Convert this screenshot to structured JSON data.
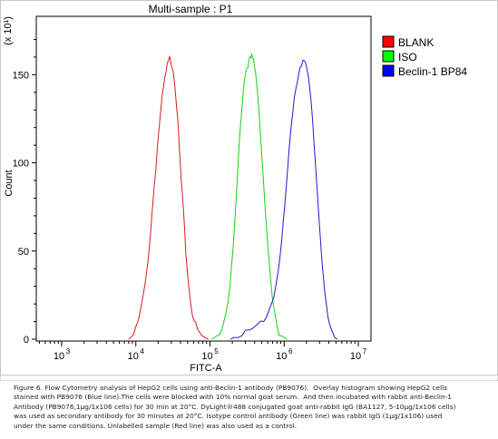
{
  "chart_data": {
    "type": "line",
    "title": "Multi-sample : P1",
    "xlabel": "FITC-A",
    "ylabel": "Count",
    "y_multiplier": "(x 10¹)",
    "x_scale": "log",
    "xlim": [
      1000,
      10000000
    ],
    "ylim": [
      0,
      180
    ],
    "x_ticks": [
      1000,
      10000,
      100000,
      1000000,
      10000000
    ],
    "x_tick_labels": [
      "10",
      "10",
      "10",
      "10",
      "10"
    ],
    "x_tick_exponents": [
      "3",
      "4",
      "5",
      "6",
      "7"
    ],
    "y_ticks": [
      0,
      50,
      100,
      150
    ],
    "y_tick_labels": [
      "0",
      "50",
      "100",
      "150"
    ],
    "grid": false,
    "legend_position": "top-right",
    "series": [
      {
        "name": "BLANK",
        "color": "#d11f1f",
        "swatch": "#ff0000",
        "points": [
          [
            8000,
            0
          ],
          [
            8600,
            1
          ],
          [
            9400,
            3
          ],
          [
            10000,
            6
          ],
          [
            10800,
            10
          ],
          [
            11600,
            16
          ],
          [
            12600,
            24
          ],
          [
            13600,
            34
          ],
          [
            14600,
            46
          ],
          [
            15600,
            58
          ],
          [
            16600,
            72
          ],
          [
            17600,
            86
          ],
          [
            18600,
            98
          ],
          [
            19600,
            110
          ],
          [
            20600,
            120
          ],
          [
            21600,
            128
          ],
          [
            22600,
            136
          ],
          [
            23600,
            142
          ],
          [
            24600,
            147
          ],
          [
            25600,
            151
          ],
          [
            26600,
            155
          ],
          [
            27600,
            157
          ],
          [
            28600,
            159
          ],
          [
            29600,
            158
          ],
          [
            30600,
            156
          ],
          [
            31600,
            154
          ],
          [
            32600,
            150
          ],
          [
            33600,
            145
          ],
          [
            34600,
            139
          ],
          [
            35600,
            132
          ],
          [
            36600,
            124
          ],
          [
            37600,
            116
          ],
          [
            38600,
            108
          ],
          [
            39600,
            100
          ],
          [
            41000,
            90
          ],
          [
            42600,
            80
          ],
          [
            44000,
            70
          ],
          [
            45600,
            60
          ],
          [
            47200,
            50
          ],
          [
            49000,
            41
          ],
          [
            51000,
            33
          ],
          [
            53000,
            26
          ],
          [
            55500,
            20
          ],
          [
            58000,
            15
          ],
          [
            61000,
            11
          ],
          [
            64000,
            8
          ],
          [
            68000,
            5
          ],
          [
            72000,
            3
          ],
          [
            78000,
            2
          ],
          [
            85000,
            1
          ],
          [
            95000,
            0
          ]
        ]
      },
      {
        "name": "ISO",
        "color": "#16d116",
        "swatch": "#00ff00",
        "points": [
          [
            105000,
            0
          ],
          [
            115000,
            1
          ],
          [
            125000,
            2
          ],
          [
            135000,
            4
          ],
          [
            145000,
            7
          ],
          [
            155000,
            11
          ],
          [
            165000,
            16
          ],
          [
            175000,
            22
          ],
          [
            185000,
            30
          ],
          [
            195000,
            40
          ],
          [
            205000,
            52
          ],
          [
            215000,
            64
          ],
          [
            225000,
            78
          ],
          [
            235000,
            92
          ],
          [
            245000,
            106
          ],
          [
            255000,
            118
          ],
          [
            265000,
            128
          ],
          [
            275000,
            137
          ],
          [
            285000,
            144
          ],
          [
            295000,
            149
          ],
          [
            305000,
            152
          ],
          [
            315000,
            154
          ],
          [
            325000,
            156
          ],
          [
            335000,
            157
          ],
          [
            345000,
            158
          ],
          [
            355000,
            159
          ],
          [
            365000,
            160
          ],
          [
            375000,
            159
          ],
          [
            385000,
            157
          ],
          [
            395000,
            155
          ],
          [
            410000,
            151
          ],
          [
            425000,
            146
          ],
          [
            440000,
            140
          ],
          [
            455000,
            132
          ],
          [
            470000,
            123
          ],
          [
            490000,
            112
          ],
          [
            510000,
            100
          ],
          [
            530000,
            88
          ],
          [
            550000,
            76
          ],
          [
            575000,
            64
          ],
          [
            600000,
            52
          ],
          [
            630000,
            42
          ],
          [
            660000,
            32
          ],
          [
            690000,
            24
          ],
          [
            725000,
            17
          ],
          [
            765000,
            11
          ],
          [
            810000,
            7
          ],
          [
            860000,
            4
          ],
          [
            920000,
            2
          ],
          [
            1000000,
            1
          ],
          [
            1100000,
            0
          ]
        ]
      },
      {
        "name": "Beclin-1 BP84",
        "color": "#1c1ccf",
        "swatch": "#0000ff",
        "points": [
          [
            190000,
            0
          ],
          [
            210000,
            1
          ],
          [
            240000,
            1
          ],
          [
            270000,
            2
          ],
          [
            300000,
            3
          ],
          [
            340000,
            4
          ],
          [
            380000,
            5
          ],
          [
            430000,
            7
          ],
          [
            480000,
            9
          ],
          [
            530000,
            11
          ],
          [
            580000,
            14
          ],
          [
            630000,
            17
          ],
          [
            680000,
            21
          ],
          [
            730000,
            26
          ],
          [
            780000,
            32
          ],
          [
            830000,
            39
          ],
          [
            880000,
            47
          ],
          [
            930000,
            56
          ],
          [
            980000,
            66
          ],
          [
            1030000,
            77
          ],
          [
            1080000,
            88
          ],
          [
            1130000,
            99
          ],
          [
            1180000,
            110
          ],
          [
            1240000,
            120
          ],
          [
            1300000,
            129
          ],
          [
            1370000,
            137
          ],
          [
            1440000,
            143
          ],
          [
            1510000,
            148
          ],
          [
            1580000,
            152
          ],
          [
            1650000,
            155
          ],
          [
            1720000,
            157
          ],
          [
            1790000,
            159
          ],
          [
            1860000,
            158
          ],
          [
            1940000,
            156
          ],
          [
            2020000,
            153
          ],
          [
            2110000,
            148
          ],
          [
            2200000,
            142
          ],
          [
            2300000,
            134
          ],
          [
            2410000,
            124
          ],
          [
            2520000,
            113
          ],
          [
            2640000,
            101
          ],
          [
            2770000,
            88
          ],
          [
            2900000,
            75
          ],
          [
            3040000,
            62
          ],
          [
            3190000,
            49
          ],
          [
            3350000,
            37
          ],
          [
            3520000,
            27
          ],
          [
            3700000,
            18
          ],
          [
            3900000,
            11
          ],
          [
            4150000,
            6
          ],
          [
            4450000,
            3
          ],
          [
            4800000,
            1
          ],
          [
            5200000,
            0
          ]
        ]
      }
    ]
  },
  "caption": {
    "text": "Figure 6. Flow Cytometry analysis of HepG2 cells using anti-Beclin-1 antibody (PB9076).  Overlay histogram showing HepG2 cells\nstained with PB9076 (Blue line).The cells were blocked with 10% normal goat serum.  And then incubated with rabbit anti-Beclin-1\nAntibody (PB9076,1μg/1x106 cells) for 30 min at 20°C. DyLight®488 conjugated goat anti-rabbit IgG (BA1127, 5-10μg/1x106 cells)\nwas used as secondary antibody for 30 minutes at 20°C. Isotype control antibody (Green line) was rabbit IgG (1μg/1x106) used\nunder the same conditions. Unlabelled sample (Red line) was also used as a control."
  }
}
